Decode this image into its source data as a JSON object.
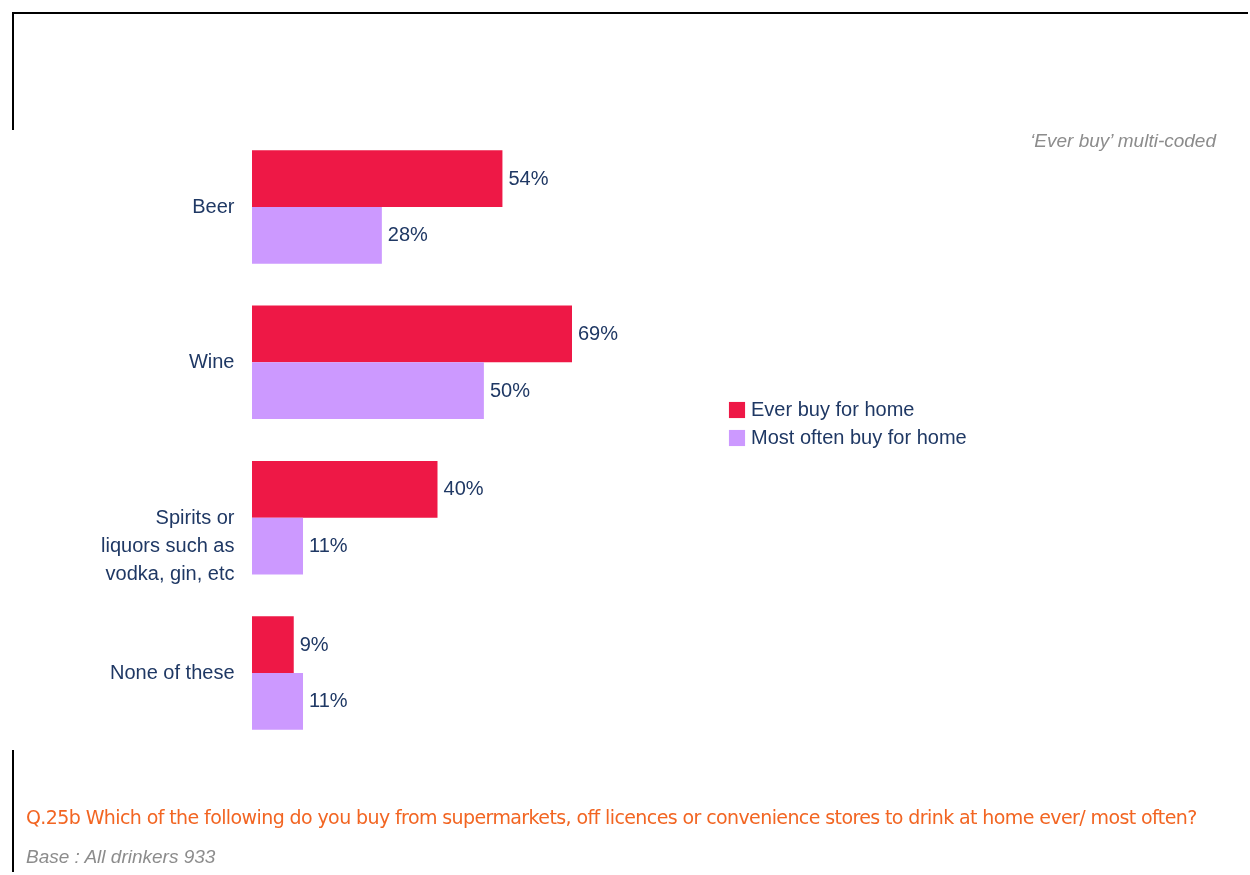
{
  "chart_data": {
    "type": "bar",
    "orientation": "horizontal",
    "categories": [
      "Beer",
      "Wine",
      "Spirits or liquors such as vodka, gin, etc",
      "None of these"
    ],
    "series": [
      {
        "name": "Ever buy for home",
        "color": "#ee1846",
        "values": [
          54,
          69,
          40,
          9
        ],
        "value_labels": [
          "54%",
          "69%",
          "40%",
          "9%"
        ]
      },
      {
        "name": "Most often buy for home",
        "color": "#cc99ff",
        "values": [
          28,
          50,
          11,
          11
        ],
        "value_labels": [
          "28%",
          "50%",
          "11%",
          "11%"
        ]
      }
    ],
    "legend": "right",
    "annotations": [
      "‘Ever buy’ multi-coded",
      "Q.25b Which of the following do you buy from supermarkets, off licences or convenience stores to drink at home ever/ most often?",
      "Base : All drinkers 933"
    ]
  }
}
